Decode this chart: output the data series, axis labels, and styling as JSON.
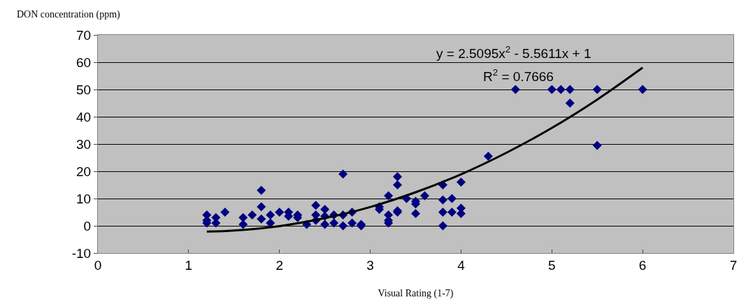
{
  "chart_data": {
    "type": "scatter",
    "xlabel": "Visual Rating (1-7)",
    "ylabel": "DON concentration (ppm)",
    "xlim": [
      0,
      7
    ],
    "xticks": [
      0,
      1,
      2,
      3,
      4,
      5,
      6,
      7
    ],
    "ylim": [
      -10,
      70
    ],
    "yticks": [
      -10,
      0,
      10,
      20,
      30,
      40,
      50,
      60,
      70
    ],
    "grid": "y",
    "marker": "diamond",
    "series": [
      {
        "color": "#000080",
        "x": [
          1.2,
          1.2,
          1.2,
          1.3,
          1.3,
          1.4,
          1.6,
          1.6,
          1.7,
          1.8,
          1.8,
          1.8,
          1.9,
          1.9,
          2.0,
          2.1,
          2.1,
          2.2,
          2.2,
          2.3,
          2.4,
          2.4,
          2.4,
          2.5,
          2.5,
          2.5,
          2.6,
          2.6,
          2.7,
          2.7,
          2.7,
          2.8,
          2.8,
          2.9,
          2.9,
          3.1,
          3.1,
          3.2,
          3.2,
          3.2,
          3.2,
          3.3,
          3.3,
          3.3,
          3.3,
          3.4,
          3.5,
          3.5,
          3.5,
          3.6,
          3.8,
          3.8,
          3.8,
          3.8,
          3.9,
          3.9,
          4.0,
          4.0,
          4.0,
          4.3,
          4.6,
          5.0,
          5.1,
          5.2,
          5.2,
          5.5,
          5.5,
          6.0
        ],
        "values": [
          4,
          2,
          1,
          3,
          1,
          5,
          3,
          0.5,
          4,
          13,
          7,
          2.5,
          4,
          1,
          5,
          5,
          3.5,
          3,
          4,
          0.5,
          7.5,
          4,
          2,
          6,
          3.5,
          0.5,
          4,
          1,
          19,
          4,
          0,
          5,
          1,
          0.5,
          0,
          7,
          6,
          11,
          4,
          2,
          1,
          18,
          15,
          5.5,
          5,
          10,
          9,
          8,
          4.5,
          11,
          15,
          5,
          0,
          9.5,
          10,
          5,
          16,
          6.5,
          4.5,
          25.5,
          50,
          50,
          50,
          50,
          45,
          50,
          29.5,
          50
        ]
      },
      {
        "type": "line",
        "color": "#000000",
        "marker": "none",
        "line_style": "solid",
        "x": [
          1.2,
          1.5,
          2,
          2.5,
          3,
          3.5,
          4,
          4.5,
          5,
          5.5,
          6
        ],
        "values": [
          -2.1,
          -1.7,
          -0.1,
          2.8,
          6.9,
          12.3,
          18.9,
          26.8,
          35.9,
          46.3,
          58.0
        ]
      }
    ],
    "annotations": [
      "y = 2.5095x$^{2}$ - 5.5611x + 1",
      "R$^{2}$ = 0.7666"
    ]
  }
}
